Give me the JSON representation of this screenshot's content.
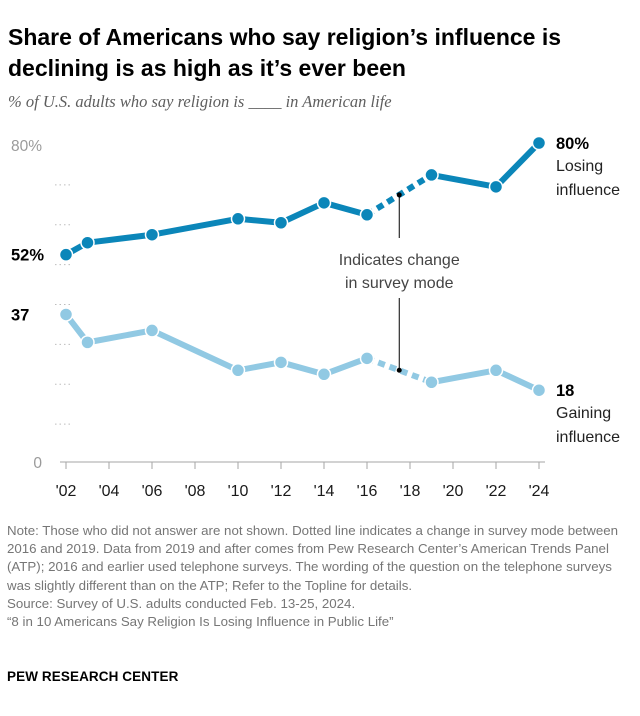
{
  "header": {
    "title": "Share of Americans who say religion’s influence is declining is as high as it’s ever been",
    "subtitle": "% of U.S. adults who say religion is ____ in American life"
  },
  "chart_data": {
    "type": "line",
    "x": [
      2002,
      2003,
      2006,
      2010,
      2012,
      2014,
      2016,
      2019,
      2022,
      2024
    ],
    "x_tick_values": [
      2002,
      2004,
      2006,
      2008,
      2010,
      2012,
      2014,
      2016,
      2018,
      2020,
      2022,
      2024
    ],
    "x_tick_labels": [
      "'02",
      "'04",
      "'06",
      "'08",
      "'10",
      "'12",
      "'14",
      "'16",
      "'18",
      "'20",
      "'22",
      "'24"
    ],
    "y_tick_values": [
      0,
      80
    ],
    "y_tick_labels": [
      "0",
      "80%"
    ],
    "ylim": [
      0,
      80
    ],
    "grid": false,
    "series": [
      {
        "name": "Losing influence",
        "color": "#0b86b9",
        "values": [
          52,
          55,
          57,
          61,
          60,
          65,
          62,
          72,
          69,
          80
        ],
        "start_label": "52%",
        "end_label": "80%"
      },
      {
        "name": "Gaining influence",
        "color": "#91c9e3",
        "values": [
          37,
          30,
          33,
          23,
          25,
          22,
          26,
          20,
          23,
          18
        ],
        "start_label": "37",
        "end_label": "18"
      }
    ],
    "mode_change": {
      "from": 2016,
      "to": 2019,
      "style": "dotted"
    },
    "annotation": "Indicates change in survey mode"
  },
  "notes": {
    "note": "Note: Those who did not answer are not shown. Dotted line indicates a change in survey mode between 2016 and 2019. Data from 2019 and after comes from Pew Research Center’s American Trends Panel (ATP); 2016 and earlier used telephone surveys. The wording of the question on the telephone surveys was slightly different than on the ATP; Refer to the Topline for details.",
    "source": "Source: Survey of U.S. adults conducted Feb. 13-25, 2024.",
    "report": "“8 in 10 Americans Say Religion Is Losing Influence in Public Life”"
  },
  "footer": {
    "brand": "PEW RESEARCH CENTER"
  }
}
